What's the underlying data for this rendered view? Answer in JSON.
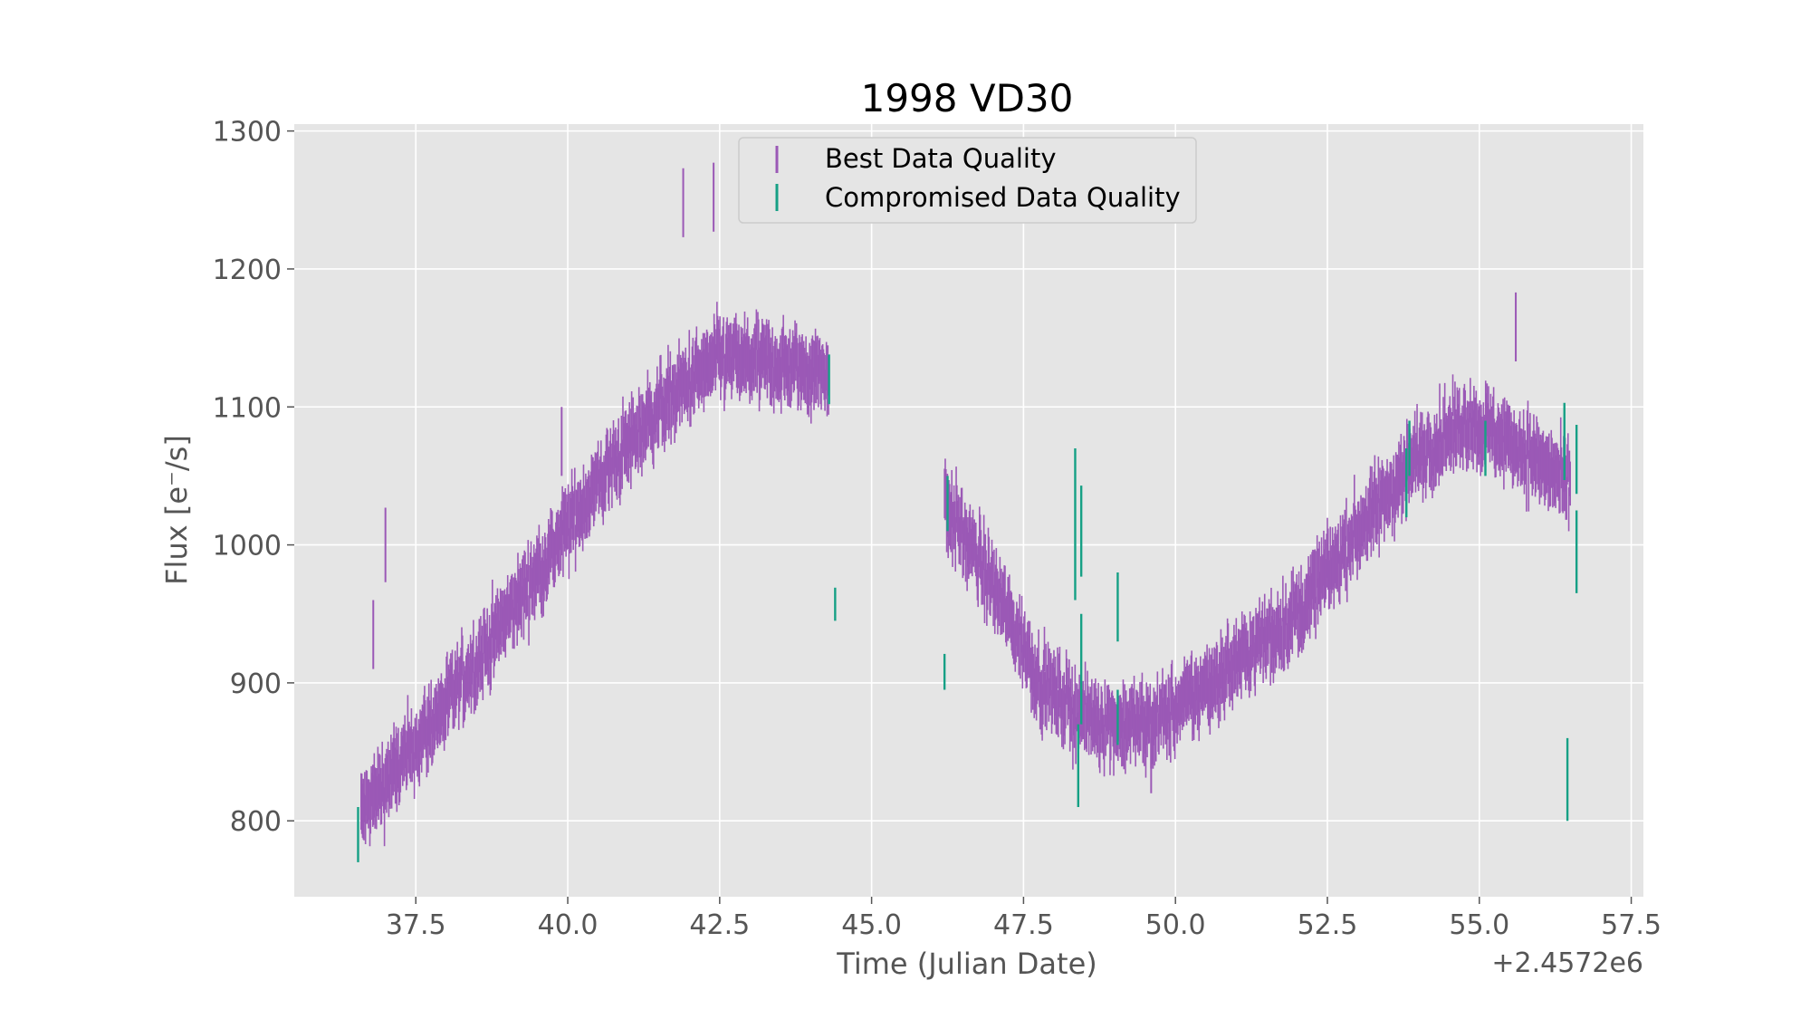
{
  "chart_data": {
    "type": "scatter",
    "title": "1998 VD30",
    "xlabel": "Time (Julian Date)",
    "ylabel": "Flux [e⁻/s]",
    "x_offset_label": "+2.4572e6",
    "x_offset": 2457200,
    "xlim": [
      35.5,
      57.7
    ],
    "ylim": [
      745,
      1305
    ],
    "xticks": [
      37.5,
      40.0,
      42.5,
      45.0,
      47.5,
      50.0,
      52.5,
      55.0,
      57.5
    ],
    "xtick_labels": [
      "37.5",
      "40.0",
      "42.5",
      "45.0",
      "47.5",
      "50.0",
      "52.5",
      "55.0",
      "57.5"
    ],
    "yticks": [
      800,
      900,
      1000,
      1100,
      1200,
      1300
    ],
    "ytick_labels": [
      "800",
      "900",
      "1000",
      "1100",
      "1200",
      "1300"
    ],
    "grid": true,
    "legend_position": "top-center",
    "colors": {
      "best": "#9b59b6",
      "compromised": "#16a085",
      "background": "#e5e5e5",
      "grid": "#ffffff"
    },
    "series": [
      {
        "name": "Best Data Quality",
        "color": "#9b59b6",
        "error_typical": 18,
        "trend_x": [
          36.6,
          37.5,
          38.5,
          39.5,
          40.5,
          41.5,
          42.5,
          43.5,
          44.3,
          46.2,
          47.0,
          47.8,
          48.5,
          49.0,
          49.5,
          50.0,
          51.0,
          52.0,
          53.0,
          54.0,
          54.8,
          55.5,
          56.0,
          56.5
        ],
        "trend_y": [
          805,
          855,
          915,
          980,
          1045,
          1100,
          1135,
          1130,
          1125,
          1030,
          970,
          900,
          875,
          870,
          870,
          880,
          915,
          950,
          1010,
          1065,
          1090,
          1075,
          1060,
          1040
        ],
        "outliers": [
          {
            "x": 36.8,
            "y": 935,
            "err": 25
          },
          {
            "x": 37.0,
            "y": 1000,
            "err": 27
          },
          {
            "x": 41.9,
            "y": 1248,
            "err": 25
          },
          {
            "x": 42.4,
            "y": 1252,
            "err": 25
          },
          {
            "x": 39.9,
            "y": 1075,
            "err": 25
          },
          {
            "x": 55.6,
            "y": 1158,
            "err": 25
          },
          {
            "x": 49.6,
            "y": 840,
            "err": 20
          }
        ]
      },
      {
        "name": "Compromised Data Quality",
        "color": "#16a085",
        "points": [
          {
            "x": 36.55,
            "y": 790,
            "err": 20
          },
          {
            "x": 44.3,
            "y": 1120,
            "err": 18
          },
          {
            "x": 44.4,
            "y": 957,
            "err": 12
          },
          {
            "x": 46.2,
            "y": 908,
            "err": 13
          },
          {
            "x": 46.25,
            "y": 1030,
            "err": 20
          },
          {
            "x": 48.35,
            "y": 1015,
            "err": 55
          },
          {
            "x": 48.45,
            "y": 1010,
            "err": 33
          },
          {
            "x": 48.4,
            "y": 840,
            "err": 30
          },
          {
            "x": 48.45,
            "y": 910,
            "err": 40
          },
          {
            "x": 49.05,
            "y": 955,
            "err": 25
          },
          {
            "x": 49.05,
            "y": 875,
            "err": 20
          },
          {
            "x": 53.8,
            "y": 1045,
            "err": 25
          },
          {
            "x": 53.85,
            "y": 1070,
            "err": 20
          },
          {
            "x": 55.1,
            "y": 1070,
            "err": 20
          },
          {
            "x": 56.4,
            "y": 1075,
            "err": 28
          },
          {
            "x": 56.6,
            "y": 1062,
            "err": 25
          },
          {
            "x": 56.6,
            "y": 995,
            "err": 30
          },
          {
            "x": 56.45,
            "y": 830,
            "err": 30
          }
        ]
      }
    ]
  }
}
